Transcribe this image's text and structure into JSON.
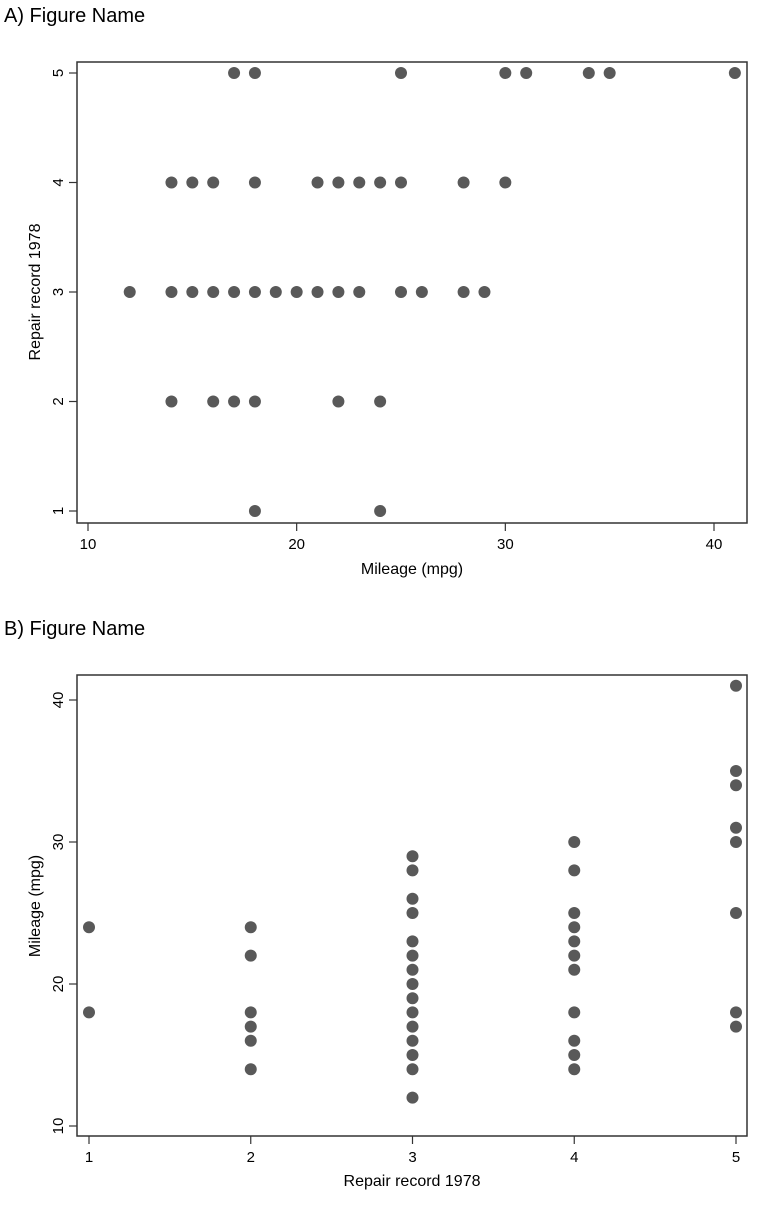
{
  "chart_data": [
    {
      "type": "scatter",
      "title": "A) Figure Name",
      "xlabel": "Mileage (mpg)",
      "ylabel": "Repair record 1978",
      "xlim": [
        10,
        41
      ],
      "ylim": [
        1,
        5
      ],
      "xticks": [
        "10",
        "20",
        "30",
        "40"
      ],
      "yticks": [
        "1",
        "2",
        "3",
        "4",
        "5"
      ],
      "grid": false,
      "marker_color": "#595959",
      "points": [
        [
          17,
          5
        ],
        [
          18,
          5
        ],
        [
          25,
          5
        ],
        [
          30,
          5
        ],
        [
          31,
          5
        ],
        [
          34,
          5
        ],
        [
          35,
          5
        ],
        [
          41,
          5
        ],
        [
          14,
          4
        ],
        [
          15,
          4
        ],
        [
          16,
          4
        ],
        [
          18,
          4
        ],
        [
          21,
          4
        ],
        [
          22,
          4
        ],
        [
          23,
          4
        ],
        [
          24,
          4
        ],
        [
          25,
          4
        ],
        [
          28,
          4
        ],
        [
          30,
          4
        ],
        [
          12,
          3
        ],
        [
          14,
          3
        ],
        [
          15,
          3
        ],
        [
          16,
          3
        ],
        [
          17,
          3
        ],
        [
          18,
          3
        ],
        [
          19,
          3
        ],
        [
          20,
          3
        ],
        [
          21,
          3
        ],
        [
          22,
          3
        ],
        [
          23,
          3
        ],
        [
          25,
          3
        ],
        [
          26,
          3
        ],
        [
          28,
          3
        ],
        [
          29,
          3
        ],
        [
          14,
          2
        ],
        [
          16,
          2
        ],
        [
          17,
          2
        ],
        [
          18,
          2
        ],
        [
          22,
          2
        ],
        [
          24,
          2
        ],
        [
          18,
          1
        ],
        [
          24,
          1
        ]
      ]
    },
    {
      "type": "scatter",
      "title": "B) Figure Name",
      "xlabel": "Repair record 1978",
      "ylabel": "Mileage (mpg)",
      "xlim": [
        1,
        5
      ],
      "ylim": [
        10,
        41
      ],
      "xticks": [
        "1",
        "2",
        "3",
        "4",
        "5"
      ],
      "yticks": [
        "10",
        "20",
        "30",
        "40"
      ],
      "grid": false,
      "marker_color": "#595959",
      "points": [
        [
          1,
          18
        ],
        [
          1,
          24
        ],
        [
          2,
          14
        ],
        [
          2,
          16
        ],
        [
          2,
          17
        ],
        [
          2,
          18
        ],
        [
          2,
          22
        ],
        [
          2,
          24
        ],
        [
          3,
          12
        ],
        [
          3,
          14
        ],
        [
          3,
          15
        ],
        [
          3,
          16
        ],
        [
          3,
          17
        ],
        [
          3,
          18
        ],
        [
          3,
          19
        ],
        [
          3,
          20
        ],
        [
          3,
          21
        ],
        [
          3,
          22
        ],
        [
          3,
          23
        ],
        [
          3,
          25
        ],
        [
          3,
          26
        ],
        [
          3,
          28
        ],
        [
          3,
          29
        ],
        [
          4,
          14
        ],
        [
          4,
          15
        ],
        [
          4,
          16
        ],
        [
          4,
          18
        ],
        [
          4,
          21
        ],
        [
          4,
          22
        ],
        [
          4,
          23
        ],
        [
          4,
          24
        ],
        [
          4,
          25
        ],
        [
          4,
          28
        ],
        [
          4,
          30
        ],
        [
          5,
          17
        ],
        [
          5,
          18
        ],
        [
          5,
          25
        ],
        [
          5,
          30
        ],
        [
          5,
          31
        ],
        [
          5,
          34
        ],
        [
          5,
          35
        ],
        [
          5,
          41
        ]
      ]
    }
  ]
}
